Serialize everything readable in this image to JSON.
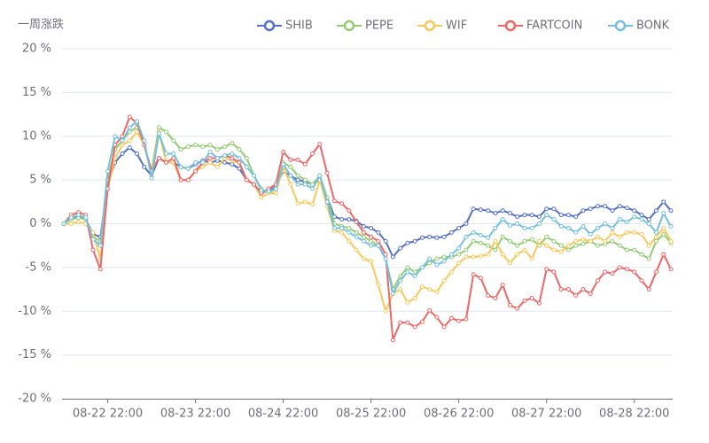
{
  "chart_data": {
    "type": "line",
    "y_axis_title": "一周涨跌",
    "x": [
      null,
      null,
      null,
      null,
      null,
      null,
      "08-22 22:00",
      null,
      null,
      null,
      null,
      null,
      null,
      null,
      null,
      null,
      null,
      null,
      "08-23 22:00",
      null,
      null,
      null,
      null,
      null,
      null,
      null,
      null,
      null,
      null,
      null,
      "08-24 22:00",
      null,
      null,
      null,
      null,
      null,
      null,
      null,
      null,
      null,
      null,
      null,
      "08-25 22:00",
      null,
      null,
      null,
      null,
      null,
      null,
      null,
      null,
      null,
      null,
      null,
      "08-26 22:00",
      null,
      null,
      null,
      null,
      null,
      null,
      null,
      null,
      null,
      null,
      null,
      "08-27 22:00",
      null,
      null,
      null,
      null,
      null,
      null,
      null,
      null,
      null,
      null,
      null,
      "08-28 22:00",
      null,
      null,
      null,
      null,
      null
    ],
    "ylim": [
      -20,
      20
    ],
    "yticks": [
      {
        "value": -20,
        "label": "-20 %"
      },
      {
        "value": -15,
        "label": "-15 %"
      },
      {
        "value": -10,
        "label": "-10 %"
      },
      {
        "value": -5,
        "label": "-5 %"
      },
      {
        "value": 0,
        "label": "0 %"
      },
      {
        "value": 5,
        "label": "5 %"
      },
      {
        "value": 10,
        "label": "10 %"
      },
      {
        "value": 15,
        "label": "15 %"
      },
      {
        "value": 20,
        "label": "20 %"
      }
    ],
    "grid": true,
    "legend": "top-right",
    "series": [
      {
        "name": "SHIB",
        "color": "#5470c6",
        "values": [
          0,
          0.6,
          0.8,
          0.5,
          -1.2,
          -1.5,
          4.5,
          7,
          8,
          8.7,
          8,
          6.5,
          5.5,
          7.5,
          7,
          7,
          6.5,
          6.3,
          6.8,
          7.2,
          7,
          7.2,
          7,
          6.8,
          6.3,
          5,
          4.5,
          3.5,
          3.8,
          4.2,
          6,
          5.5,
          5,
          4.8,
          4.5,
          5,
          3,
          0.8,
          0.5,
          0.5,
          0.3,
          -0.3,
          -0.5,
          -1,
          -2,
          -3.8,
          -2.8,
          -2.2,
          -2,
          -1.6,
          -1.5,
          -1.6,
          -1.5,
          -1,
          -0.5,
          0,
          1.7,
          1.6,
          1.5,
          1.2,
          1.5,
          1.2,
          0.8,
          1,
          1,
          0.8,
          1.7,
          1.7,
          1,
          1,
          0.8,
          1.5,
          1.7,
          2,
          2,
          1.5,
          2,
          1.8,
          1.5,
          1,
          0.5,
          1.5,
          2.5,
          1.5
        ]
      },
      {
        "name": "PEPE",
        "color": "#91cc75",
        "values": [
          0,
          0.5,
          0.7,
          0.5,
          -1.5,
          -2,
          5,
          8.5,
          9.5,
          10.5,
          11,
          9,
          6,
          11,
          10.5,
          9.5,
          8.5,
          8.8,
          9,
          8.8,
          9,
          8.5,
          8.8,
          9.2,
          8.5,
          7.5,
          5.5,
          4,
          3.5,
          4,
          7,
          6.5,
          5.5,
          5,
          4.5,
          5.5,
          3,
          0,
          -0.3,
          -0.5,
          -1,
          -1.5,
          -2,
          -2.5,
          -4,
          -7.5,
          -6,
          -5,
          -5.5,
          -5,
          -4.5,
          -4,
          -3.8,
          -3.8,
          -3.5,
          -3,
          -2,
          -2.2,
          -2.5,
          -3,
          -1.5,
          -2,
          -2.5,
          -2,
          -1.8,
          -2.5,
          -1.5,
          -2,
          -2.5,
          -3,
          -2.5,
          -2.3,
          -2,
          -2.5,
          -2.3,
          -2,
          -2.5,
          -3,
          -3,
          -3.5,
          -4,
          -2,
          -1.2,
          -2.2
        ]
      },
      {
        "name": "WIF",
        "color": "#fac858",
        "values": [
          0,
          0,
          0.2,
          0,
          -1,
          -4,
          4,
          7.5,
          9,
          9.5,
          10.5,
          9,
          5.5,
          10.5,
          7,
          7,
          5,
          5,
          6,
          6.5,
          7,
          6.5,
          7.5,
          7.2,
          7,
          5,
          4.5,
          3,
          3.5,
          3.5,
          6.5,
          4.5,
          2.3,
          2.5,
          2.2,
          5,
          2,
          -0.8,
          -1,
          -2,
          -3,
          -4,
          -4.3,
          -7,
          -10,
          -8,
          -7.5,
          -9,
          -8.5,
          -7.2,
          -7.5,
          -7.8,
          -6.5,
          -5.5,
          -4.5,
          -3.8,
          -3.8,
          -3.7,
          -3.5,
          -2,
          -3.5,
          -4.5,
          -3.5,
          -3,
          -4,
          -2,
          -2.5,
          -3,
          -3.2,
          -2.5,
          -2,
          -1.8,
          -2,
          -1.5,
          -2,
          -1,
          -1.5,
          -1,
          -1,
          -1.2,
          -2.5,
          -1.5,
          -0.5,
          -2
        ]
      },
      {
        "name": "FARTCOIN",
        "color": "#ee6666",
        "values": [
          0,
          1,
          1.3,
          1,
          -3,
          -5.2,
          4,
          9,
          10,
          12.2,
          11.5,
          9,
          6,
          7.5,
          7,
          7.5,
          5,
          5,
          6,
          7,
          7.5,
          7.5,
          7.8,
          7.5,
          7,
          5,
          4.5,
          3.5,
          4,
          4.5,
          8.2,
          7.3,
          7.3,
          6.8,
          8,
          9.1,
          5.8,
          2.6,
          2.3,
          1.5,
          0.2,
          -1,
          -1.5,
          -2,
          -3.5,
          -13.3,
          -11.3,
          -11.3,
          -11.8,
          -11.2,
          -9.9,
          -10.7,
          -11.8,
          -10.8,
          -11.1,
          -10.9,
          -5.8,
          -6.2,
          -8.2,
          -8.5,
          -7,
          -9.3,
          -9.7,
          -8.8,
          -8.5,
          -9.1,
          -5.2,
          -5.5,
          -7.5,
          -7.5,
          -8.2,
          -7.5,
          -8,
          -6.5,
          -5.5,
          -5.7,
          -5,
          -5.2,
          -5.5,
          -6.5,
          -7.5,
          -5.5,
          -3.5,
          -5.2
        ]
      },
      {
        "name": "BONK",
        "color": "#73c0de",
        "values": [
          0,
          0.7,
          1,
          0.7,
          -1.8,
          -2.5,
          6,
          10,
          9.5,
          11,
          11.7,
          9.5,
          5.2,
          10.3,
          8,
          8,
          6.5,
          6.3,
          7,
          7,
          8.2,
          7.5,
          7.8,
          8,
          7.5,
          6.5,
          5.5,
          3.8,
          3.7,
          4,
          6.8,
          5.5,
          4.5,
          4.5,
          4,
          5.5,
          2.5,
          -0.5,
          -0.5,
          -1,
          -1.5,
          -2,
          -2.5,
          -2.5,
          -4,
          -8,
          -6.5,
          -5.5,
          -6,
          -5,
          -4,
          -4.7,
          -4.3,
          -3.5,
          -2.8,
          -1.5,
          -1,
          -1.3,
          -1.6,
          -0.5,
          0.5,
          -0.2,
          0,
          -0.5,
          -0.5,
          0,
          1,
          0.5,
          -0.3,
          -0.5,
          -1,
          -0.3,
          -1.2,
          -0.5,
          0,
          -0.5,
          0.5,
          0.2,
          0.8,
          0.5,
          0,
          -1,
          1.2,
          -0.3
        ]
      }
    ]
  }
}
